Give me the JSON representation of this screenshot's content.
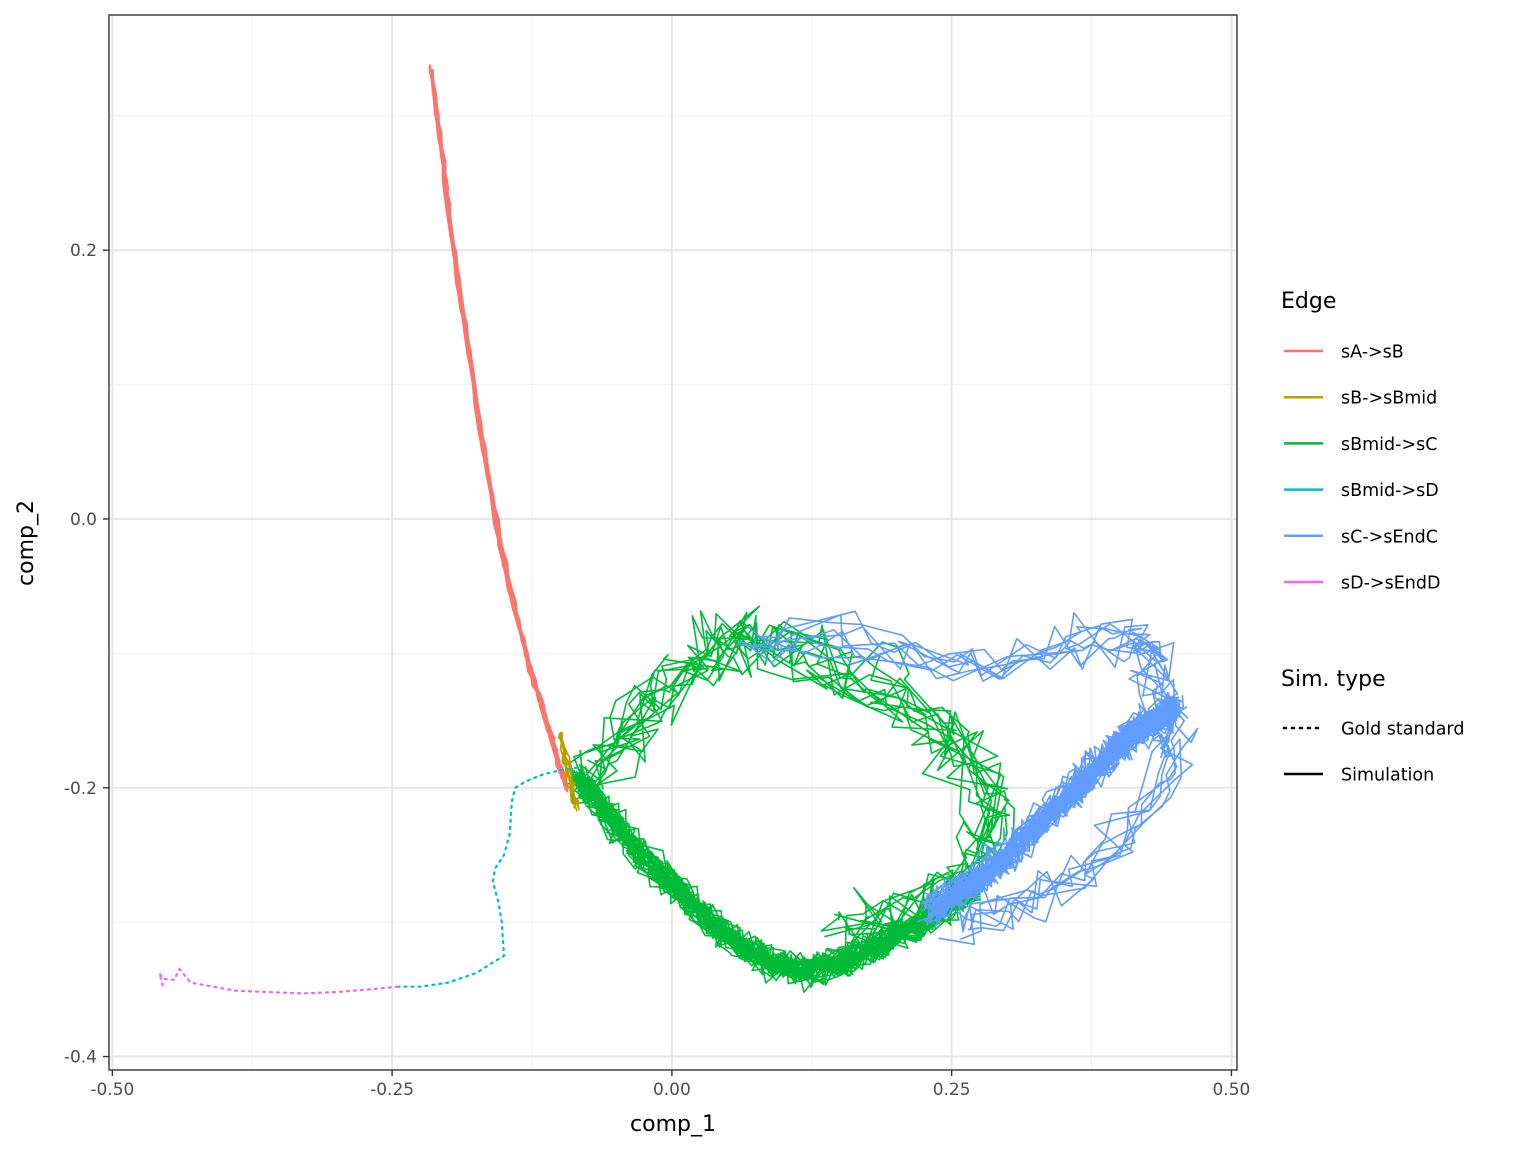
{
  "chart_data": {
    "type": "line",
    "xlabel": "comp_1",
    "ylabel": "comp_2",
    "xlim": [
      -0.503,
      0.505
    ],
    "ylim": [
      -0.41,
      0.375
    ],
    "x_ticks": [
      {
        "value": -0.5,
        "label": "-0.50"
      },
      {
        "value": -0.25,
        "label": "-0.25"
      },
      {
        "value": 0.0,
        "label": "0.00"
      },
      {
        "value": 0.25,
        "label": "0.25"
      },
      {
        "value": 0.5,
        "label": "0.50"
      }
    ],
    "y_ticks": [
      {
        "value": -0.4,
        "label": "-0.4"
      },
      {
        "value": -0.2,
        "label": "-0.2"
      },
      {
        "value": 0.0,
        "label": "0.0"
      },
      {
        "value": 0.2,
        "label": "0.2"
      }
    ],
    "grid": true,
    "legend_placement": "right",
    "legends": {
      "edge": {
        "title": "Edge",
        "entries": [
          {
            "name": "sA->sB",
            "color": "#F8766D"
          },
          {
            "name": "sB->sBmid",
            "color": "#B79F00"
          },
          {
            "name": "sBmid->sC",
            "color": "#00BA38"
          },
          {
            "name": "sBmid->sD",
            "color": "#00BFC4"
          },
          {
            "name": "sC->sEndC",
            "color": "#619CFF"
          },
          {
            "name": "sD->sEndD",
            "color": "#F564E3"
          }
        ]
      },
      "sim_type": {
        "title": "Sim. type",
        "entries": [
          {
            "name": "Gold standard",
            "dash": "dotted"
          },
          {
            "name": "Simulation",
            "dash": "solid"
          }
        ]
      }
    },
    "series": [
      {
        "edge": "sBmid->sC",
        "sim_type": "Simulation",
        "color": "#00BA38",
        "role": "main band",
        "points": [
          [
            -0.085,
            -0.19
          ],
          [
            -0.06,
            -0.215
          ],
          [
            -0.03,
            -0.245
          ],
          [
            0.0,
            -0.27
          ],
          [
            0.03,
            -0.295
          ],
          [
            0.06,
            -0.315
          ],
          [
            0.09,
            -0.33
          ],
          [
            0.12,
            -0.335
          ],
          [
            0.15,
            -0.33
          ],
          [
            0.18,
            -0.32
          ],
          [
            0.21,
            -0.305
          ],
          [
            0.24,
            -0.29
          ],
          [
            0.27,
            -0.275
          ]
        ]
      },
      {
        "edge": "sBmid->sC",
        "sim_type": "Simulation",
        "color": "#00BA38",
        "role": "loop",
        "points": [
          [
            -0.07,
            -0.2
          ],
          [
            -0.045,
            -0.175
          ],
          [
            -0.02,
            -0.14
          ],
          [
            0.02,
            -0.115
          ],
          [
            0.05,
            -0.095
          ],
          [
            0.07,
            -0.09
          ],
          [
            0.12,
            -0.1
          ],
          [
            0.17,
            -0.12
          ],
          [
            0.22,
            -0.145
          ],
          [
            0.26,
            -0.175
          ],
          [
            0.29,
            -0.21
          ],
          [
            0.28,
            -0.25
          ],
          [
            0.25,
            -0.28
          ],
          [
            0.2,
            -0.3
          ],
          [
            0.15,
            -0.315
          ]
        ]
      },
      {
        "edge": "sC->sEndC",
        "sim_type": "Simulation",
        "color": "#619CFF",
        "role": "main band",
        "points": [
          [
            0.23,
            -0.29
          ],
          [
            0.27,
            -0.27
          ],
          [
            0.3,
            -0.25
          ],
          [
            0.33,
            -0.225
          ],
          [
            0.36,
            -0.2
          ],
          [
            0.39,
            -0.175
          ],
          [
            0.41,
            -0.16
          ],
          [
            0.43,
            -0.15
          ],
          [
            0.45,
            -0.14
          ]
        ]
      },
      {
        "edge": "sC->sEndC",
        "sim_type": "Simulation",
        "color": "#619CFF",
        "role": "loop",
        "points": [
          [
            0.07,
            -0.09
          ],
          [
            0.15,
            -0.088
          ],
          [
            0.22,
            -0.1
          ],
          [
            0.3,
            -0.11
          ],
          [
            0.36,
            -0.09
          ],
          [
            0.41,
            -0.09
          ],
          [
            0.43,
            -0.1
          ],
          [
            0.44,
            -0.13
          ],
          [
            0.45,
            -0.16
          ],
          [
            0.44,
            -0.19
          ],
          [
            0.4,
            -0.24
          ],
          [
            0.35,
            -0.27
          ],
          [
            0.3,
            -0.29
          ],
          [
            0.26,
            -0.3
          ]
        ]
      },
      {
        "edge": "sA->sB",
        "sim_type": "Simulation",
        "color": "#F8766D",
        "role": "main band",
        "points": [
          [
            -0.215,
            0.335
          ],
          [
            -0.207,
            0.28
          ],
          [
            -0.198,
            0.22
          ],
          [
            -0.188,
            0.16
          ],
          [
            -0.177,
            0.1
          ],
          [
            -0.166,
            0.04
          ],
          [
            -0.153,
            -0.02
          ],
          [
            -0.14,
            -0.07
          ],
          [
            -0.127,
            -0.11
          ],
          [
            -0.116,
            -0.14
          ],
          [
            -0.107,
            -0.165
          ],
          [
            -0.1,
            -0.185
          ],
          [
            -0.094,
            -0.2
          ]
        ]
      },
      {
        "edge": "sB->sBmid",
        "sim_type": "Simulation",
        "color": "#B79F00",
        "role": "main band",
        "points": [
          [
            -0.1,
            -0.16
          ],
          [
            -0.096,
            -0.175
          ],
          [
            -0.092,
            -0.19
          ],
          [
            -0.088,
            -0.205
          ],
          [
            -0.085,
            -0.215
          ]
        ]
      },
      {
        "edge": "sBmid->sD",
        "sim_type": "Gold standard",
        "color": "#00BFC4",
        "points": [
          [
            -0.085,
            -0.185
          ],
          [
            -0.1,
            -0.187
          ],
          [
            -0.115,
            -0.19
          ],
          [
            -0.13,
            -0.195
          ],
          [
            -0.14,
            -0.2
          ],
          [
            -0.143,
            -0.21
          ],
          [
            -0.145,
            -0.235
          ],
          [
            -0.15,
            -0.25
          ],
          [
            -0.158,
            -0.26
          ],
          [
            -0.16,
            -0.27
          ],
          [
            -0.155,
            -0.285
          ],
          [
            -0.152,
            -0.3
          ],
          [
            -0.15,
            -0.325
          ],
          [
            -0.16,
            -0.33
          ],
          [
            -0.175,
            -0.338
          ],
          [
            -0.2,
            -0.345
          ],
          [
            -0.225,
            -0.348
          ],
          [
            -0.245,
            -0.348
          ]
        ]
      },
      {
        "edge": "sD->sEndD",
        "sim_type": "Gold standard",
        "color": "#F564E3",
        "points": [
          [
            -0.245,
            -0.348
          ],
          [
            -0.27,
            -0.35
          ],
          [
            -0.3,
            -0.352
          ],
          [
            -0.33,
            -0.353
          ],
          [
            -0.36,
            -0.352
          ],
          [
            -0.39,
            -0.351
          ],
          [
            -0.41,
            -0.348
          ],
          [
            -0.43,
            -0.345
          ],
          [
            -0.44,
            -0.335
          ],
          [
            -0.445,
            -0.343
          ],
          [
            -0.455,
            -0.342
          ],
          [
            -0.458,
            -0.338
          ],
          [
            -0.455,
            -0.347
          ]
        ]
      }
    ]
  }
}
